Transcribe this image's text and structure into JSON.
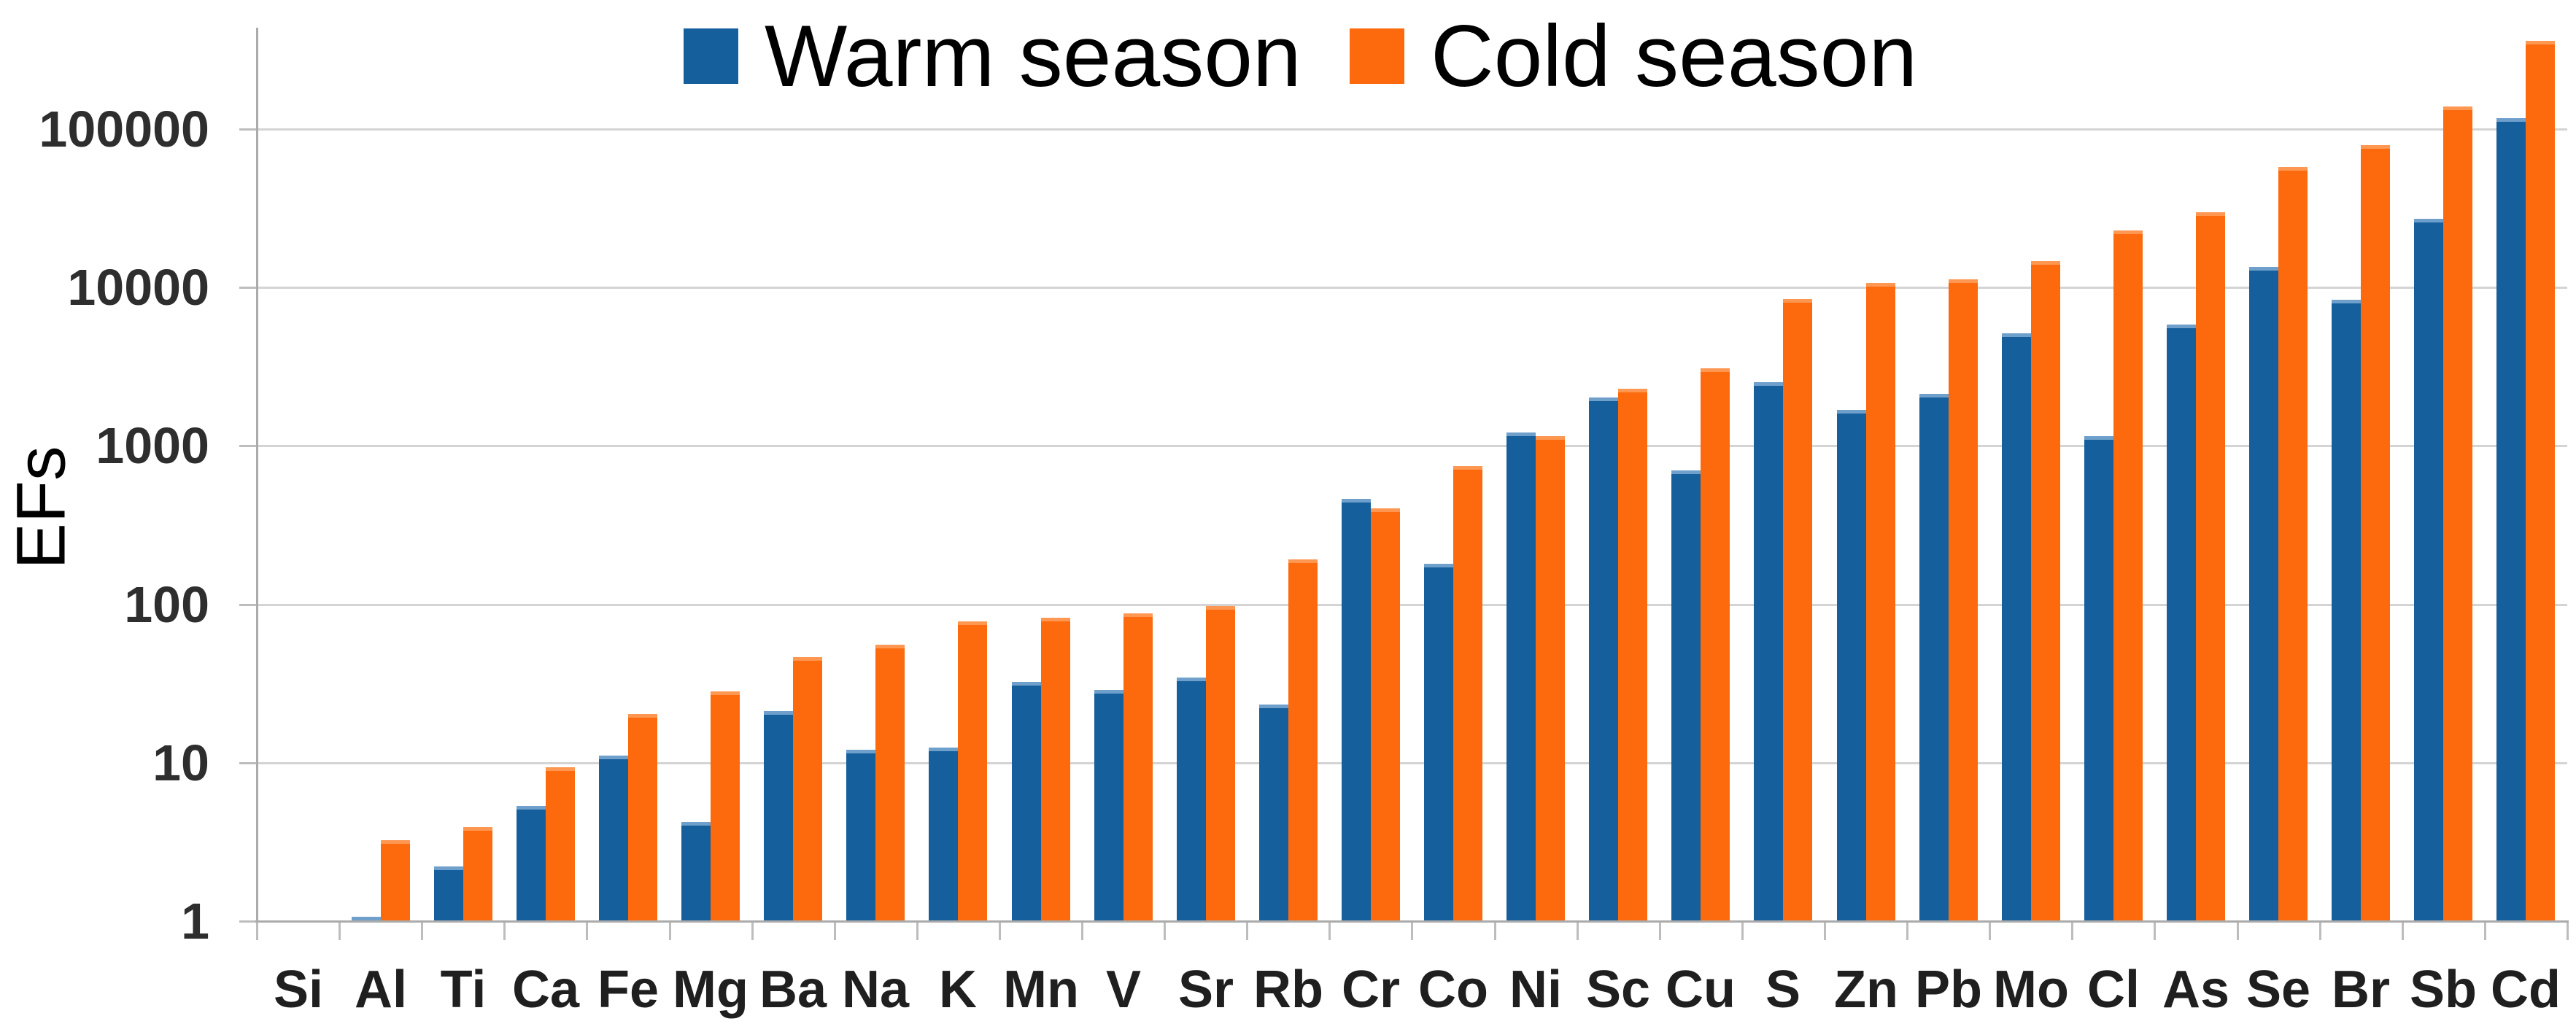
{
  "figure": {
    "ylabel": "EFs",
    "background": "#ffffff",
    "gridline_color": "#d4d4d4",
    "axis_color": "#ababab"
  },
  "legend": {
    "position": "top",
    "items": [
      {
        "label": "Warm season",
        "color": "#155F9C"
      },
      {
        "label": "Cold season",
        "color": "#FC6A0D"
      }
    ]
  },
  "chart_data": {
    "type": "bar",
    "y_scale": "log",
    "title": "",
    "xlabel": "",
    "ylabel": "EFs",
    "ylim": [
      1,
      400000
    ],
    "y_ticks": [
      1,
      10,
      100,
      1000,
      10000,
      100000
    ],
    "y_tick_labels": [
      "1",
      "10",
      "100",
      "1000",
      "10000",
      "100000"
    ],
    "grid": "horizontal",
    "legend_position": "top",
    "categories": [
      "Si",
      "Al",
      "Ti",
      "Ca",
      "Fe",
      "Mg",
      "Ba",
      "Na",
      "K",
      "Mn",
      "V",
      "Sr",
      "Rb",
      "Cr",
      "Co",
      "Ni",
      "Sc",
      "Cu",
      "S",
      "Zn",
      "Pb",
      "Mo",
      "Cl",
      "As",
      "Se",
      "Br",
      "Sb",
      "Cd"
    ],
    "series": [
      {
        "name": "Warm season",
        "color": "#155F9C",
        "cap_color": "#6FA0CC",
        "values": [
          1,
          1.05,
          2.2,
          5.3,
          11,
          4.2,
          21,
          12,
          12.3,
          32,
          28.5,
          34,
          23,
          460,
          178,
          1200,
          2000,
          690,
          2500,
          1670,
          2100,
          5100,
          1140,
          5800,
          13400,
          8300,
          27000,
          116000
        ]
      },
      {
        "name": "Cold season",
        "color": "#FC6A0D",
        "cap_color": "#FD9752",
        "values": [
          1,
          3.2,
          3.9,
          9.3,
          20,
          28,
          46,
          55,
          77,
          81,
          87,
          96,
          190,
          400,
          740,
          1140,
          2260,
          3050,
          8400,
          10600,
          11200,
          14500,
          22600,
          29500,
          57000,
          78000,
          137000,
          355000
        ]
      }
    ]
  }
}
